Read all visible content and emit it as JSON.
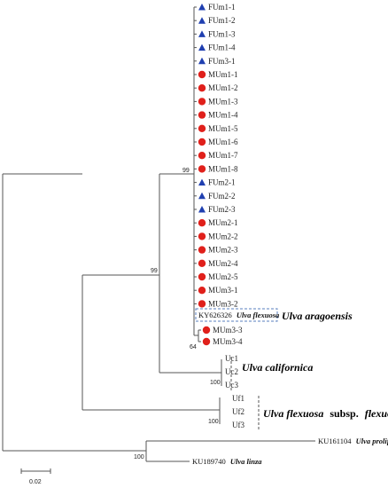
{
  "tips": [
    {
      "label": "FUm1-1",
      "marker": "triangle"
    },
    {
      "label": "FUm1-2",
      "marker": "triangle"
    },
    {
      "label": "FUm1-3",
      "marker": "triangle"
    },
    {
      "label": "FUm1-4",
      "marker": "triangle"
    },
    {
      "label": "FUm3-1",
      "marker": "triangle"
    },
    {
      "label": "MUm1-1",
      "marker": "circle"
    },
    {
      "label": "MUm1-2",
      "marker": "circle"
    },
    {
      "label": "MUm1-3",
      "marker": "circle"
    },
    {
      "label": "MUm1-4",
      "marker": "circle"
    },
    {
      "label": "MUm1-5",
      "marker": "circle"
    },
    {
      "label": "MUm1-6",
      "marker": "circle"
    },
    {
      "label": "MUm1-7",
      "marker": "circle"
    },
    {
      "label": "MUm1-8",
      "marker": "circle"
    },
    {
      "label": "FUm2-1",
      "marker": "triangle"
    },
    {
      "label": "FUm2-2",
      "marker": "triangle"
    },
    {
      "label": "FUm2-3",
      "marker": "triangle"
    },
    {
      "label": "MUm2-1",
      "marker": "circle"
    },
    {
      "label": "MUm2-2",
      "marker": "circle"
    },
    {
      "label": "MUm2-3",
      "marker": "circle"
    },
    {
      "label": "MUm2-4",
      "marker": "circle"
    },
    {
      "label": "MUm2-5",
      "marker": "circle"
    },
    {
      "label": "MUm3-1",
      "marker": "circle"
    },
    {
      "label": "MUm3-2",
      "marker": "circle"
    }
  ],
  "reference": {
    "accession": "KY626326",
    "species": "Ulva flexuosa"
  },
  "subclade_tips": [
    {
      "label": "MUm3-3",
      "marker": "circle"
    },
    {
      "label": "MUm3-4",
      "marker": "circle"
    }
  ],
  "californica_tips": [
    "Uc1",
    "Uc2",
    "Uc3"
  ],
  "flexuosa_tips": [
    "Uf1",
    "Uf2",
    "Uf3"
  ],
  "outgroups": [
    {
      "accession": "KU161104",
      "species": "Ulva prolifera"
    },
    {
      "accession": "KU189740",
      "species": "Ulva linza"
    }
  ],
  "bootstrap": {
    "aragoensis_main": "99",
    "aragoensis_californica": "99",
    "subclade": "64",
    "californica": "100",
    "flexuosa": "100",
    "outgroup": "100"
  },
  "clade_labels": {
    "aragoensis": "Ulva aragoensis",
    "californica": "Ulva californica",
    "flexuosa_species": "Ulva flexuosa",
    "flexuosa_subsp": "subsp.",
    "flexuosa_epithet": "flexuosa"
  },
  "scale_bar": {
    "label": "0.02"
  },
  "colors": {
    "triangle": "#1f3fb0",
    "circle": "#e0201b",
    "branch": "#555555",
    "box": "#5a7fbf"
  }
}
